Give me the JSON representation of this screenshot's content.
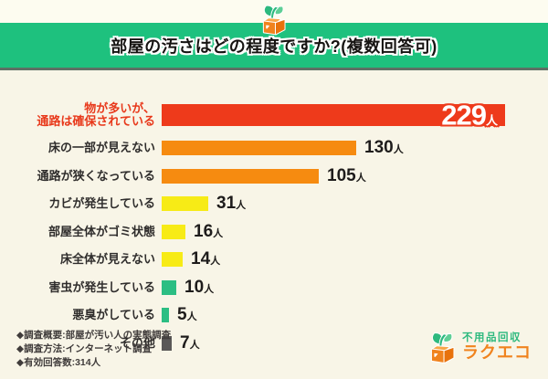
{
  "header": {
    "title": "部屋の汚さはどの程度ですか?(複数回答可)",
    "band_color": "#1EC17E"
  },
  "chart_data": {
    "type": "bar",
    "orientation": "horizontal",
    "title": "部屋の汚さはどの程度ですか?(複数回答可)",
    "unit": "人",
    "categories": [
      "物が多いが、\n通路は確保されている",
      "床の一部が見えない",
      "通路が狭くなっている",
      "カビが発生している",
      "部屋全体がゴミ状態",
      "床全体が見えない",
      "害虫が発生している",
      "悪臭がしている",
      "その他"
    ],
    "values": [
      229,
      130,
      105,
      31,
      16,
      14,
      10,
      5,
      7
    ],
    "bar_colors": [
      "#EE3A1B",
      "#F68B10",
      "#F68B10",
      "#F7EB16",
      "#F7EB16",
      "#F7EB16",
      "#2CBE83",
      "#2CBE83",
      "#5A5857"
    ],
    "label_colors": [
      "#E8391B",
      "#2F2D2C",
      "#2F2D2C",
      "#2F2D2C",
      "#2F2D2C",
      "#2F2D2C",
      "#2F2D2C",
      "#2F2D2C",
      "#2F2D2C"
    ],
    "value_label_inside_index": 0,
    "xlim": [
      0,
      240
    ],
    "grid": false,
    "legend": false
  },
  "footer": {
    "notes": [
      "◆調査概要:部屋が汚い人の実態調査",
      "◆調査方法:インターネット調査",
      "◆有効回答数:314人"
    ]
  },
  "logo": {
    "line1": "不用品回収",
    "line2": "ラクエコ",
    "green": "#2DB97E",
    "orange": "#F0831E"
  }
}
